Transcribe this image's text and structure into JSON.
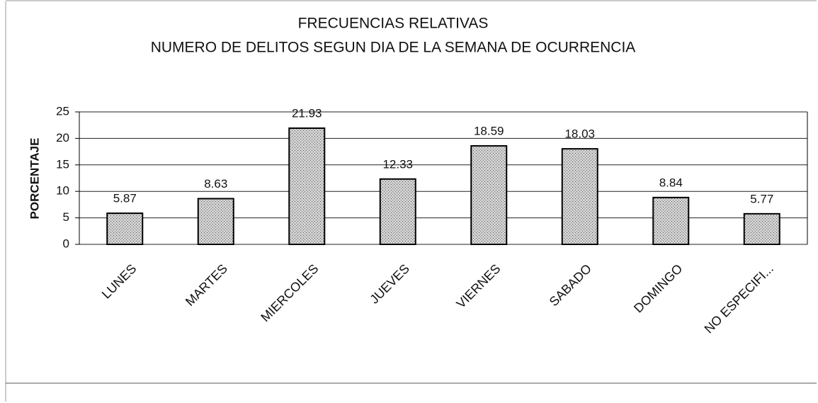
{
  "chart_data": {
    "type": "bar",
    "title": "FRECUENCIAS RELATIVAS",
    "subtitle": "NUMERO DE DELITOS SEGUN DIA DE LA SEMANA DE OCURRENCIA",
    "y_label": "PORCENTAJE",
    "categories": [
      "LUNES",
      "MARTES",
      "MIERCOLES",
      "JUEVES",
      "VIERNES",
      "SABADO",
      "DOMINGO",
      "NO ESPECIFI..."
    ],
    "values": [
      5.87,
      8.63,
      21.93,
      12.33,
      18.59,
      18.03,
      8.84,
      5.77
    ],
    "color": "#a8a8a8",
    "ylim": [
      0,
      25
    ],
    "yticks": [
      0,
      5,
      10,
      15,
      20,
      25
    ],
    "grid": true
  }
}
